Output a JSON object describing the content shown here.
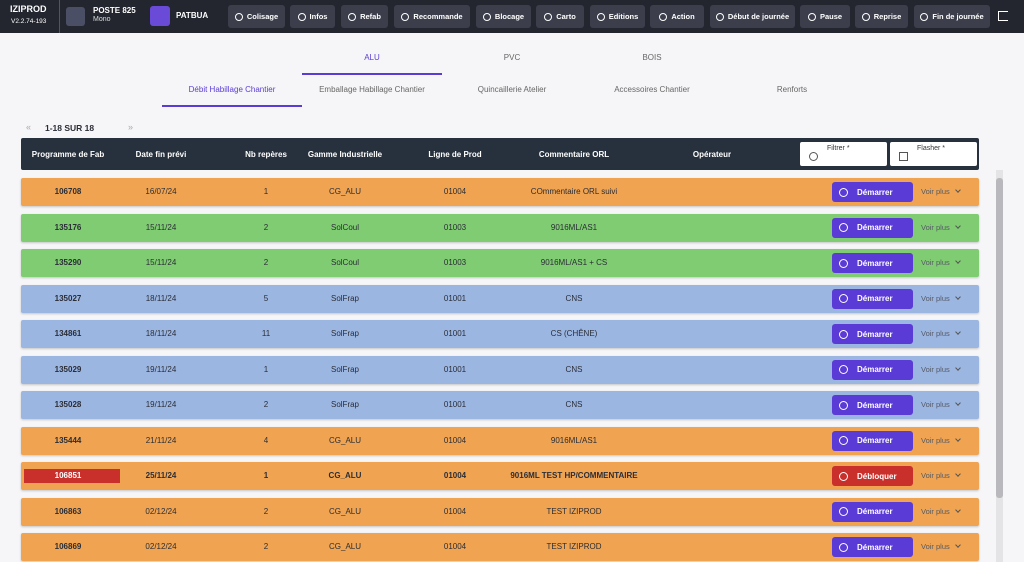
{
  "header": {
    "app_name": "IZIPROD",
    "version": "V2.2.74-193",
    "poste": "POSTE 825",
    "mode": "Mono",
    "user": "PATBUA",
    "buttons": [
      "Colisage",
      "Infos",
      "Refab",
      "Recommande",
      "Blocage",
      "Carto",
      "Editions",
      "Action",
      "Début de journée",
      "Pause",
      "Reprise",
      "Fin de journée"
    ]
  },
  "tabs": [
    "ALU",
    "PVC",
    "BOIS"
  ],
  "subtabs": [
    "Débit Habillage Chantier",
    "Emballage Habillage Chantier",
    "Quincaillerie Atelier",
    "Accessoires Chantier",
    "Renforts"
  ],
  "pagination": {
    "prev": "«",
    "range": "1-18 SUR 18",
    "next": "»"
  },
  "table": {
    "columns": [
      "Programme de Fab",
      "Date fin prévi",
      "Nb repères",
      "Gamme Industrielle",
      "Ligne de Prod",
      "Commentaire ORL",
      "Opérateur"
    ],
    "filters": [
      "Filtrer *",
      "Flasher *"
    ],
    "more_label": "Voir plus",
    "rows": [
      {
        "cells": [
          "106708",
          "16/07/24",
          "1",
          "CG_ALU",
          "01004",
          "COmmentaire ORL suivi"
        ],
        "color": "#f0a451",
        "action": "Démarrer",
        "action_color": "#5b3bd6"
      },
      {
        "cells": [
          "135176",
          "15/11/24",
          "2",
          "SolCoul",
          "01003",
          "9016ML/AS1"
        ],
        "color": "#80cc72",
        "action": "Démarrer",
        "action_color": "#5b3bd6"
      },
      {
        "cells": [
          "135290",
          "15/11/24",
          "2",
          "SolCoul",
          "01003",
          "9016ML/AS1 + CS"
        ],
        "color": "#80cc72",
        "action": "Démarrer",
        "action_color": "#5b3bd6"
      },
      {
        "cells": [
          "135027",
          "18/11/24",
          "5",
          "SolFrap",
          "01001",
          "CNS"
        ],
        "color": "#9cb6e2",
        "action": "Démarrer",
        "action_color": "#5b3bd6"
      },
      {
        "cells": [
          "134861",
          "18/11/24",
          "11",
          "SolFrap",
          "01001",
          "CS (CHÊNE)"
        ],
        "color": "#9cb6e2",
        "action": "Démarrer",
        "action_color": "#5b3bd6"
      },
      {
        "cells": [
          "135029",
          "19/11/24",
          "1",
          "SolFrap",
          "01001",
          "CNS"
        ],
        "color": "#9cb6e2",
        "action": "Démarrer",
        "action_color": "#5b3bd6"
      },
      {
        "cells": [
          "135028",
          "19/11/24",
          "2",
          "SolFrap",
          "01001",
          "CNS"
        ],
        "color": "#9cb6e2",
        "action": "Démarrer",
        "action_color": "#5b3bd6"
      },
      {
        "cells": [
          "135444",
          "21/11/24",
          "4",
          "CG_ALU",
          "01004",
          "9016ML/AS1"
        ],
        "color": "#f0a451",
        "action": "Démarrer",
        "action_color": "#5b3bd6"
      },
      {
        "cells": [
          "106851",
          "25/11/24",
          "1",
          "CG_ALU",
          "01004",
          "9016ML TEST HP/COMMENTAIRE"
        ],
        "color": "#f0a451",
        "action": "Débloquer",
        "action_color": "#c9302c",
        "badge_color": "#c9302c",
        "bold": true
      },
      {
        "cells": [
          "106863",
          "02/12/24",
          "2",
          "CG_ALU",
          "01004",
          "TEST IZIPROD"
        ],
        "color": "#f0a451",
        "action": "Démarrer",
        "action_color": "#5b3bd6"
      },
      {
        "cells": [
          "106869",
          "02/12/24",
          "2",
          "CG_ALU",
          "01004",
          "TEST IZIPROD"
        ],
        "color": "#f0a451",
        "action": "Démarrer",
        "action_color": "#5b3bd6"
      }
    ]
  }
}
